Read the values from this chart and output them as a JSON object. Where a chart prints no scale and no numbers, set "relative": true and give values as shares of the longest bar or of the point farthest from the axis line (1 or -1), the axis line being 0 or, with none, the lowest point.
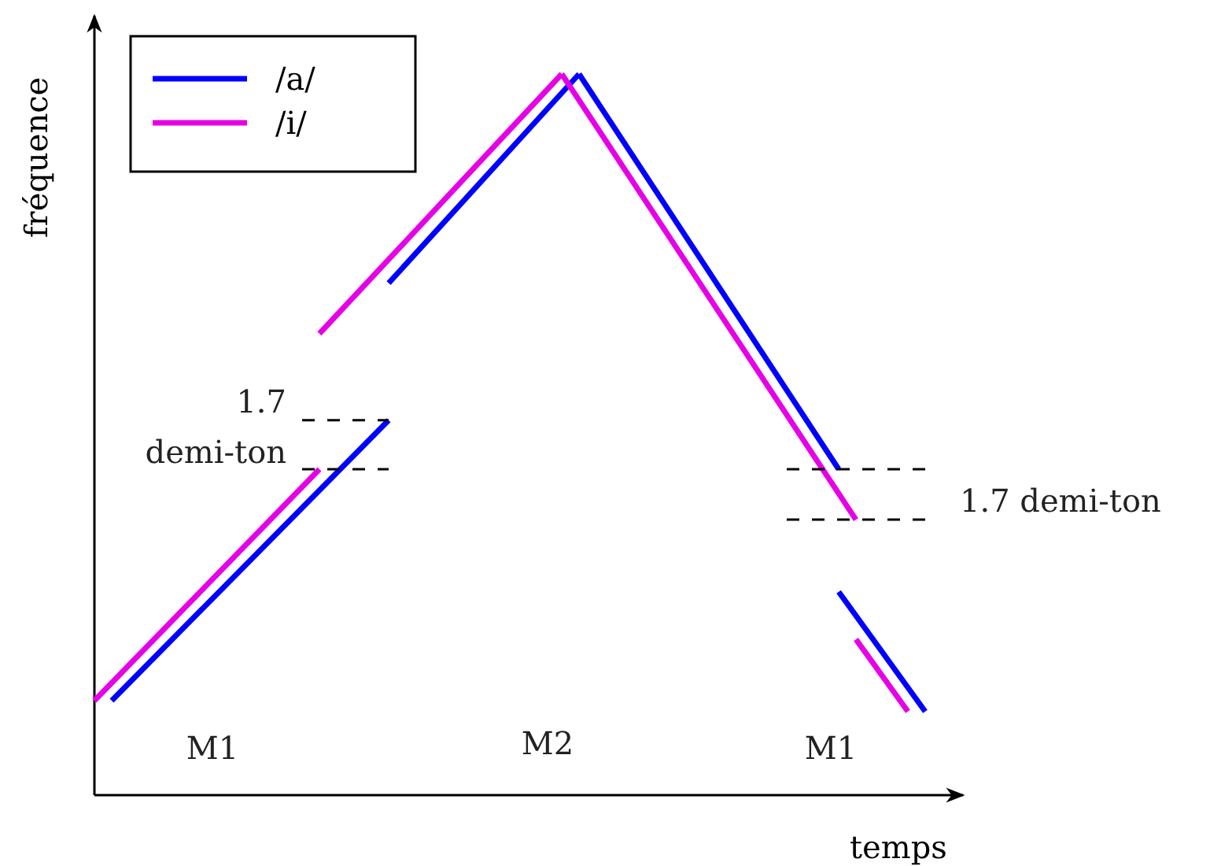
{
  "chart_data": {
    "type": "line",
    "relative": true,
    "xlabel": "temps",
    "ylabel": "fréquence",
    "legend": "top left",
    "categories": [
      null,
      null,
      null,
      null,
      null,
      null,
      null,
      null,
      null,
      null,
      null,
      null,
      null,
      null,
      null,
      null,
      null,
      null,
      null,
      null,
      null,
      null,
      null,
      null,
      null,
      null,
      null,
      null,
      null,
      null,
      null,
      null,
      null,
      null,
      null,
      null,
      null,
      null,
      null,
      null,
      null,
      null,
      null,
      null,
      null,
      null,
      null,
      null,
      null,
      null,
      null
    ],
    "series": [
      {
        "name": "/a/",
        "color": "#0000ff",
        "values": [
          null,
          0.131,
          null,
          null,
          null,
          null,
          null,
          null,
          null,
          null,
          null,
          null,
          null,
          null,
          null,
          null,
          null,
          0.52,
          null,
          null,
          null,
          null,
          null,
          null,
          null,
          null,
          null,
          null,
          null,
          null,
          null,
          null,
          null,
          null,
          null,
          null,
          null,
          null,
          null,
          null,
          null,
          null,
          null,
          null,
          null,
          null,
          null,
          null,
          null,
          null,
          null
        ]
      },
      {
        "color": "#0000ff",
        "values": [
          null,
          null,
          null,
          null,
          null,
          null,
          null,
          null,
          null,
          null,
          null,
          null,
          null,
          null,
          null,
          null,
          null,
          0.71,
          null,
          null,
          null,
          null,
          null,
          null,
          null,
          null,
          null,
          null,
          1,
          null,
          null,
          null,
          null,
          null,
          null,
          null,
          null,
          null,
          null,
          null,
          null,
          null,
          null,
          null,
          null,
          null,
          null,
          null,
          null,
          null,
          null
        ]
      },
      {
        "color": "#0000ff",
        "values": [
          null,
          null,
          null,
          null,
          null,
          null,
          null,
          null,
          null,
          null,
          null,
          null,
          null,
          null,
          null,
          null,
          null,
          null,
          null,
          null,
          null,
          null,
          null,
          null,
          null,
          null,
          null,
          null,
          1,
          null,
          null,
          null,
          null,
          null,
          null,
          null,
          null,
          null,
          null,
          null,
          null,
          null,
          null,
          0.452,
          null,
          null,
          null,
          null,
          null,
          null,
          null
        ]
      },
      {
        "color": "#0000ff",
        "values": [
          null,
          null,
          null,
          null,
          null,
          null,
          null,
          null,
          null,
          null,
          null,
          null,
          null,
          null,
          null,
          null,
          null,
          null,
          null,
          null,
          null,
          null,
          null,
          null,
          null,
          null,
          null,
          null,
          null,
          null,
          null,
          null,
          null,
          null,
          null,
          null,
          null,
          null,
          null,
          null,
          null,
          null,
          null,
          0.282,
          null,
          null,
          null,
          null,
          0.116,
          null,
          null
        ]
      },
      {
        "name": "/i/",
        "color": "#e600e6",
        "values": [
          0.131,
          null,
          null,
          null,
          null,
          null,
          null,
          null,
          null,
          null,
          null,
          null,
          null,
          0.452,
          null,
          null,
          null,
          null,
          null,
          null,
          null,
          null,
          null,
          null,
          null,
          null,
          null,
          null,
          null,
          null,
          null,
          null,
          null,
          null,
          null,
          null,
          null,
          null,
          null,
          null,
          null,
          null,
          null,
          null,
          null,
          null,
          null,
          null,
          null,
          null,
          null
        ]
      },
      {
        "color": "#e600e6",
        "values": [
          null,
          null,
          null,
          null,
          null,
          null,
          null,
          null,
          null,
          null,
          null,
          null,
          null,
          0.64,
          null,
          null,
          null,
          null,
          null,
          null,
          null,
          null,
          null,
          null,
          null,
          null,
          null,
          1,
          null,
          null,
          null,
          null,
          null,
          null,
          null,
          null,
          null,
          null,
          null,
          null,
          null,
          null,
          null,
          null,
          null,
          null,
          null,
          null,
          null,
          null,
          null
        ]
      },
      {
        "color": "#e600e6",
        "values": [
          null,
          null,
          null,
          null,
          null,
          null,
          null,
          null,
          null,
          null,
          null,
          null,
          null,
          null,
          null,
          null,
          null,
          null,
          null,
          null,
          null,
          null,
          null,
          null,
          null,
          null,
          null,
          1,
          null,
          null,
          null,
          null,
          null,
          null,
          null,
          null,
          null,
          null,
          null,
          null,
          null,
          null,
          null,
          null,
          0.382,
          null,
          null,
          null,
          null,
          null,
          null
        ]
      },
      {
        "color": "#e600e6",
        "values": [
          null,
          null,
          null,
          null,
          null,
          null,
          null,
          null,
          null,
          null,
          null,
          null,
          null,
          null,
          null,
          null,
          null,
          null,
          null,
          null,
          null,
          null,
          null,
          null,
          null,
          null,
          null,
          null,
          null,
          null,
          null,
          null,
          null,
          null,
          null,
          null,
          null,
          null,
          null,
          null,
          null,
          null,
          null,
          null,
          0.216,
          null,
          null,
          0.116,
          null,
          null,
          null
        ]
      },
      {
        "color": "#000000",
        "line_style": "dashed",
        "values": [
          null,
          null,
          null,
          null,
          null,
          null,
          null,
          null,
          null,
          null,
          null,
          null,
          0.52,
          null,
          null,
          null,
          null,
          0.52,
          null,
          null,
          null,
          null,
          null,
          null,
          null,
          null,
          null,
          null,
          null,
          null,
          null,
          null,
          null,
          null,
          null,
          null,
          null,
          null,
          null,
          null,
          null,
          null,
          null,
          null,
          null,
          null,
          null,
          null,
          null,
          null,
          null
        ]
      },
      {
        "color": "#000000",
        "line_style": "dashed",
        "values": [
          null,
          null,
          null,
          null,
          null,
          null,
          null,
          null,
          null,
          null,
          null,
          null,
          0.452,
          null,
          null,
          null,
          null,
          0.452,
          null,
          null,
          null,
          null,
          null,
          null,
          null,
          null,
          null,
          null,
          null,
          null,
          null,
          null,
          null,
          null,
          null,
          null,
          null,
          null,
          null,
          null,
          null,
          null,
          null,
          null,
          null,
          null,
          null,
          null,
          null,
          null,
          null
        ]
      },
      {
        "color": "#000000",
        "line_style": "dashed",
        "values": [
          null,
          null,
          null,
          null,
          null,
          null,
          null,
          null,
          null,
          null,
          null,
          null,
          null,
          null,
          null,
          null,
          null,
          null,
          null,
          null,
          null,
          null,
          null,
          null,
          null,
          null,
          null,
          null,
          null,
          null,
          null,
          null,
          null,
          null,
          null,
          null,
          null,
          null,
          null,
          null,
          0.452,
          null,
          null,
          null,
          null,
          null,
          null,
          null,
          0.452,
          null,
          null
        ]
      },
      {
        "color": "#000000",
        "line_style": "dashed",
        "values": [
          null,
          null,
          null,
          null,
          null,
          null,
          null,
          null,
          null,
          null,
          null,
          null,
          null,
          null,
          null,
          null,
          null,
          null,
          null,
          null,
          null,
          null,
          null,
          null,
          null,
          null,
          null,
          null,
          null,
          null,
          null,
          null,
          null,
          null,
          null,
          null,
          null,
          null,
          null,
          null,
          0.382,
          null,
          null,
          null,
          null,
          null,
          null,
          null,
          0.382,
          null,
          null
        ]
      }
    ],
    "annotations": [
      "1.7\ndemi-ton",
      "1.7 demi-ton",
      "M1",
      "M2",
      "M1"
    ]
  }
}
